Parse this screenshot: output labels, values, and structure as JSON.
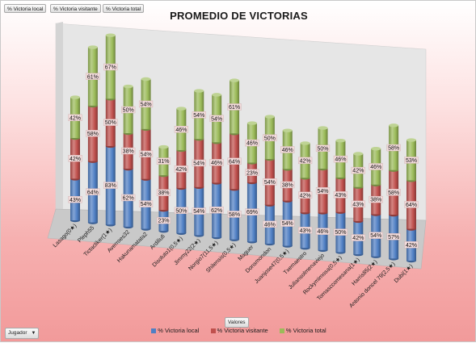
{
  "field_buttons": [
    "% Victoria local",
    "% Victoria visitante",
    "% Victoria total"
  ],
  "values_button": "Valores",
  "jugador_button": "Jugador",
  "colors": {
    "local": "#4f7fc4",
    "visitante": "#c0504d",
    "total": "#9bbb59"
  },
  "chart_data": {
    "type": "bar",
    "title": "PROMEDIO DE VICTORIAS",
    "stacked": true,
    "categories": [
      "Lasago(0★)",
      "Pleph55",
      "Tictacliker(1★)",
      "Averroes32",
      "Hakunamatata2",
      "Ardiliufi",
      "Disoluto1(0,5★)",
      "Jimmy22(2★)",
      "Norgio7(11,5★)",
      "Shilensis(0,5★)",
      "Maguer",
      "Donsmondon",
      "Juanjose47(0,5★)",
      "Txemaestro",
      "Juliansolmenaviejo",
      "Rockymimosa(0,5★)",
      "Tomasccomesana(1★)",
      "Harris85(2★)",
      "Antonio doncel 79(2,5★)",
      "Dubi(1★)"
    ],
    "series": [
      {
        "name": "% Victoria local",
        "values": [
          43,
          64,
          83,
          62,
          54,
          23,
          50,
          54,
          62,
          58,
          69,
          46,
          54,
          43,
          46,
          50,
          42,
          54,
          57,
          42
        ],
        "labels": [
          "43%",
          "64%",
          "83%",
          "62%",
          "54%",
          "23%",
          "50%",
          "54%",
          "62%",
          "58%",
          "69%",
          "46%",
          "54%",
          "43%",
          "46%",
          "50%",
          "42%",
          "54%",
          "57%",
          "42%"
        ]
      },
      {
        "name": "% Victoria visitante",
        "values": [
          42,
          58,
          50,
          38,
          54,
          38,
          42,
          54,
          46,
          64,
          23,
          54,
          38,
          42,
          54,
          43,
          43,
          38,
          58,
          64
        ],
        "labels": [
          "42%",
          "58%",
          "50%",
          "38%",
          "54%",
          "38%",
          "42%",
          "54%",
          "46%",
          "64%",
          "23%",
          "54%",
          "38%",
          "42%",
          "54%",
          "43%",
          "43%",
          "38%",
          "58%",
          "64%"
        ]
      },
      {
        "name": "% Victoria total",
        "values": [
          42,
          61,
          67,
          50,
          54,
          31,
          46,
          54,
          54,
          61,
          46,
          50,
          46,
          42,
          50,
          46,
          42,
          46,
          58,
          53
        ],
        "labels": [
          "42%",
          "61%",
          "67%",
          "50%",
          "54%",
          "31%",
          "46%",
          "54%",
          "54%",
          "61%",
          "46%",
          "50%",
          "46%",
          "42%",
          "50%",
          "46%",
          "42%",
          "46%",
          "58%",
          "53%"
        ]
      }
    ],
    "grid": false,
    "legend_position": "bottom"
  }
}
